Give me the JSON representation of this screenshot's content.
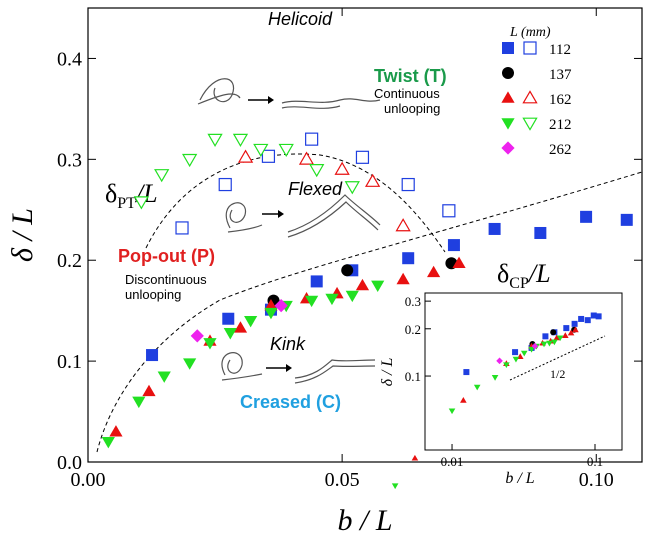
{
  "chart_data": {
    "type": "scatter",
    "x_label": "b / L",
    "y_label": "δ / L",
    "xlim": [
      0,
      0.109
    ],
    "ylim": [
      0,
      0.45
    ],
    "xticks": [
      {
        "value": 0,
        "label": "0.00"
      },
      {
        "value": 0.05,
        "label": "0.05"
      },
      {
        "value": 0.1,
        "label": "0.10"
      }
    ],
    "yticks": [
      {
        "value": 0,
        "label": "0.0"
      },
      {
        "value": 0.1,
        "label": "0.1"
      },
      {
        "value": 0.2,
        "label": "0.2"
      },
      {
        "value": 0.3,
        "label": "0.3"
      },
      {
        "value": 0.4,
        "label": "0.4"
      }
    ],
    "legend_title": "L (mm)",
    "legend_position": "upper right",
    "series": [
      {
        "name": "112",
        "color": "#1f3fe0",
        "marker": "square",
        "filled": {
          "x": [
            0.0126,
            0.0276,
            0.036,
            0.045,
            0.052,
            0.063,
            0.072,
            0.08,
            0.089,
            0.098,
            0.106
          ],
          "y": [
            0.106,
            0.142,
            0.151,
            0.179,
            0.19,
            0.202,
            0.215,
            0.231,
            0.227,
            0.243,
            0.24
          ]
        },
        "open": {
          "x": [
            0.0185,
            0.027,
            0.0355,
            0.044,
            0.054,
            0.063,
            0.071
          ],
          "y": [
            0.232,
            0.275,
            0.303,
            0.32,
            0.302,
            0.275,
            0.249
          ]
        }
      },
      {
        "name": "137",
        "color": "#000000",
        "marker": "circle",
        "filled": {
          "x": [
            0.0365,
            0.051,
            0.0715
          ],
          "y": [
            0.16,
            0.19,
            0.197
          ]
        }
      },
      {
        "name": "162",
        "color": "#e81010",
        "marker": "triangle-up",
        "filled": {
          "x": [
            0.0055,
            0.012,
            0.024,
            0.03,
            0.036,
            0.043,
            0.049,
            0.054,
            0.062,
            0.068,
            0.073
          ],
          "y": [
            0.03,
            0.07,
            0.12,
            0.133,
            0.155,
            0.162,
            0.167,
            0.175,
            0.181,
            0.188,
            0.197
          ]
        },
        "open": {
          "x": [
            0.031,
            0.043,
            0.05,
            0.056,
            0.062
          ],
          "y": [
            0.302,
            0.3,
            0.29,
            0.278,
            0.234
          ]
        }
      },
      {
        "name": "212",
        "color": "#22e022",
        "marker": "triangle-down",
        "filled": {
          "x": [
            0.004,
            0.01,
            0.015,
            0.02,
            0.024,
            0.028,
            0.032,
            0.036,
            0.039,
            0.044,
            0.048,
            0.052,
            0.057
          ],
          "y": [
            0.02,
            0.06,
            0.085,
            0.098,
            0.118,
            0.128,
            0.14,
            0.148,
            0.155,
            0.16,
            0.162,
            0.165,
            0.175
          ]
        },
        "open": {
          "x": [
            0.0105,
            0.0145,
            0.02,
            0.025,
            0.03,
            0.034,
            0.039,
            0.045,
            0.052
          ],
          "y": [
            0.258,
            0.285,
            0.3,
            0.32,
            0.32,
            0.31,
            0.31,
            0.29,
            0.273
          ]
        }
      },
      {
        "name": "262",
        "color": "#ee22ee",
        "marker": "diamond",
        "filled": {
          "x": [
            0.0215,
            0.038
          ],
          "y": [
            0.125,
            0.155
          ]
        }
      }
    ],
    "annotations": {
      "helicoid": "Helicoid",
      "twist": "Twist (T)",
      "continuous": [
        "Continuous",
        "unlooping"
      ],
      "flexed": "Flexed",
      "popout": "Pop-out (P)",
      "discontinuous": [
        "Discontinuous",
        "unlooping"
      ],
      "kink": "Kink",
      "creased": "Creased (C)",
      "pt": {
        "symbol": "δ",
        "sub": "PT",
        "rest": "/L"
      },
      "cp": {
        "symbol": "δ",
        "sub": "CP",
        "rest": "/L"
      }
    },
    "inset": {
      "type": "scatter",
      "log": true,
      "x_label": "b / L",
      "y_label": "δ / L",
      "xlim": [
        0.00647,
        0.1545
      ],
      "ylim": [
        0.0338,
        0.338
      ],
      "xticks": [
        0.01,
        0.1
      ],
      "yticks": [
        0.1,
        0.2,
        0.3
      ],
      "slope_label": "1/2"
    }
  }
}
